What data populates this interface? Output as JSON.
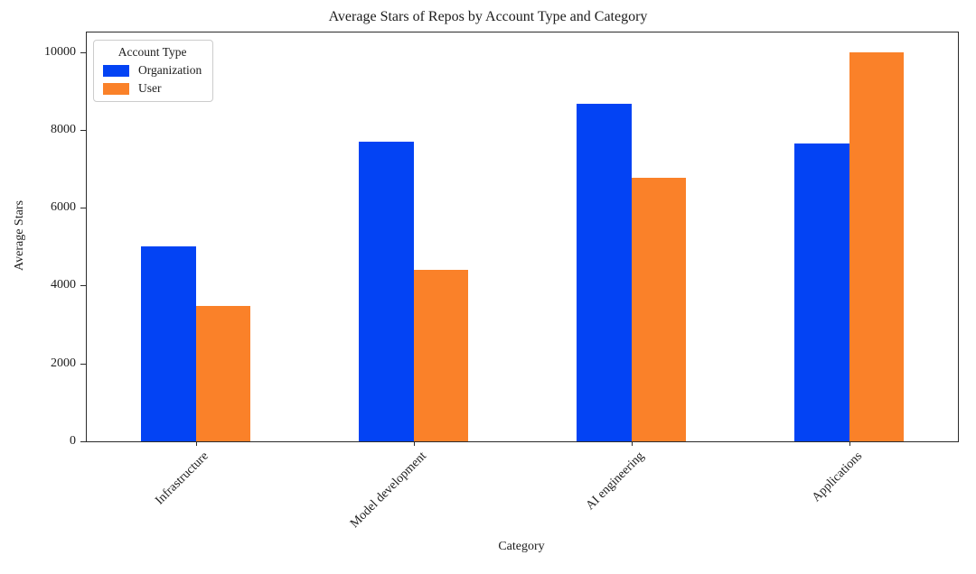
{
  "chart_data": {
    "type": "bar",
    "title": "Average Stars of Repos by Account Type and Category",
    "xlabel": "Category",
    "ylabel": "Average Stars",
    "categories": [
      "Infrastructure",
      "Model development",
      "AI engineering",
      "Applications"
    ],
    "series": [
      {
        "name": "Organization",
        "color": "#0343f4",
        "values": [
          5000,
          7690,
          8660,
          7660
        ]
      },
      {
        "name": "User",
        "color": "#fa8129",
        "values": [
          3480,
          4410,
          6780,
          9990
        ]
      }
    ],
    "legend": {
      "title": "Account Type",
      "position": "upper left"
    },
    "ylim": [
      0,
      10500
    ],
    "yticks": [
      0,
      2000,
      4000,
      6000,
      8000,
      10000
    ],
    "grid": false,
    "x_tick_rotation": 45,
    "bar_group_width_fraction": 0.5
  },
  "colors": {
    "organization": "#0343f4",
    "user": "#fa8129",
    "spine": "#2b2b2b",
    "text": "#1c1c1c"
  }
}
